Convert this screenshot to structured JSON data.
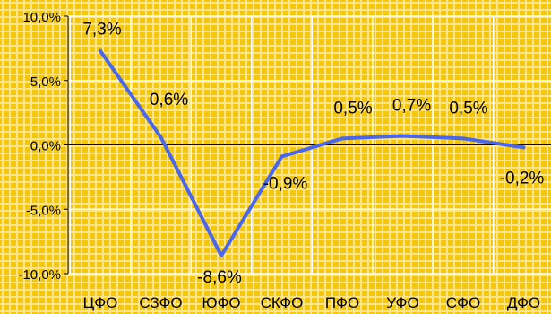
{
  "chart_data": {
    "type": "line",
    "title": "",
    "xlabel": "",
    "ylabel": "",
    "categories": [
      "ЦФО",
      "СЗФО",
      "ЮФО",
      "СКФО",
      "ПФО",
      "УФО",
      "СФО",
      "ДФО"
    ],
    "series": [
      {
        "values": [
          7.3,
          0.6,
          -8.6,
          -0.9,
          0.5,
          0.7,
          0.5,
          -0.2
        ],
        "data_labels": [
          "7,3%",
          "0,6%",
          "-8,6%",
          "-0,9%",
          "0,5%",
          "0,7%",
          "0,5%",
          "-0,2%"
        ],
        "color": "#4a66ea"
      }
    ],
    "ylim": [
      -10,
      10
    ],
    "y_ticks": [
      10,
      5,
      0,
      -5,
      -10
    ],
    "y_tick_labels": [
      "10,0%",
      "5,0%",
      "0,0%",
      "-5,0%",
      "-10,0%"
    ],
    "grid": true,
    "legend": "none",
    "colors": {
      "plot_background": "#f3c80c",
      "gridline": "#ffffff",
      "axis": "#000000",
      "line": "#4a66ea"
    }
  }
}
